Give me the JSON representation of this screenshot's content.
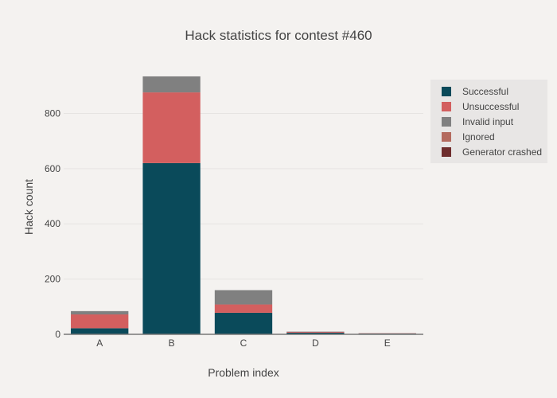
{
  "chart_data": {
    "type": "bar",
    "stacked": true,
    "title": "Hack statistics for contest #460",
    "xlabel": "Problem index",
    "ylabel": "Hack count",
    "categories": [
      "A",
      "B",
      "C",
      "D",
      "E"
    ],
    "ylim": [
      0,
      980
    ],
    "yticks": [
      0,
      200,
      400,
      600,
      800
    ],
    "grid": true,
    "legend_position": "top-right",
    "series": [
      {
        "name": "Successful",
        "color": "#0a4a5a",
        "values": [
          22,
          620,
          78,
          6,
          3
        ]
      },
      {
        "name": "Unsuccessful",
        "color": "#d35f5f",
        "values": [
          50,
          256,
          30,
          3,
          1
        ]
      },
      {
        "name": "Invalid input",
        "color": "#808080",
        "values": [
          12,
          58,
          52,
          1,
          0
        ]
      },
      {
        "name": "Ignored",
        "color": "#b46a5e",
        "values": [
          0,
          0,
          0,
          0,
          0
        ]
      },
      {
        "name": "Generator crashed",
        "color": "#6e2d2d",
        "values": [
          0,
          0,
          0,
          0,
          0
        ]
      }
    ],
    "plot_bg": "#f4f2f0",
    "legend_bg": "#e8e6e5",
    "axis_color": "#777777"
  }
}
